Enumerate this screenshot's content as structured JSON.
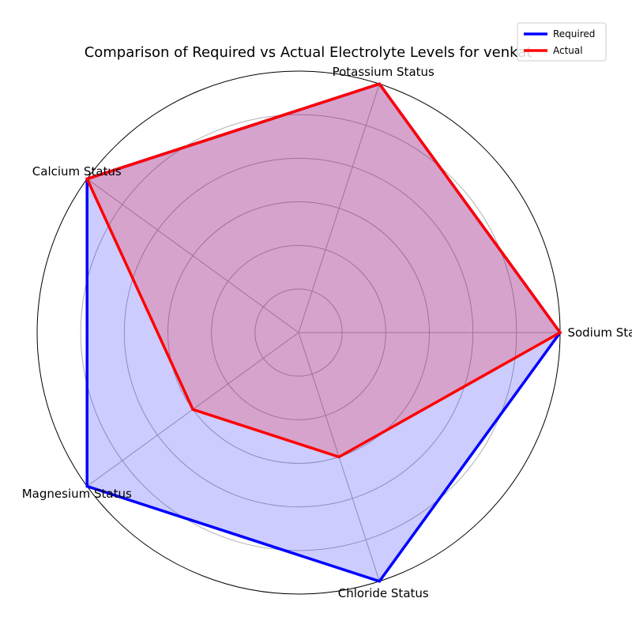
{
  "chart_data": {
    "type": "radar",
    "title": "Comparison of Required vs Actual Electrolyte Levels for venkat",
    "categories": [
      "Sodium Status",
      "Potassium Status",
      "Calcium Status",
      "Magnesium Status",
      "Chloride Status"
    ],
    "rlim": [
      0,
      4
    ],
    "grid": true,
    "legend_position": "top-right",
    "series": [
      {
        "name": "Required",
        "values": [
          4,
          4,
          4,
          4,
          4
        ],
        "color": "#0000ff",
        "fill": "#0000ff"
      },
      {
        "name": "Actual",
        "values": [
          4,
          4,
          4,
          2,
          2
        ],
        "color": "#ff0000",
        "fill": "#ff0000"
      }
    ]
  }
}
